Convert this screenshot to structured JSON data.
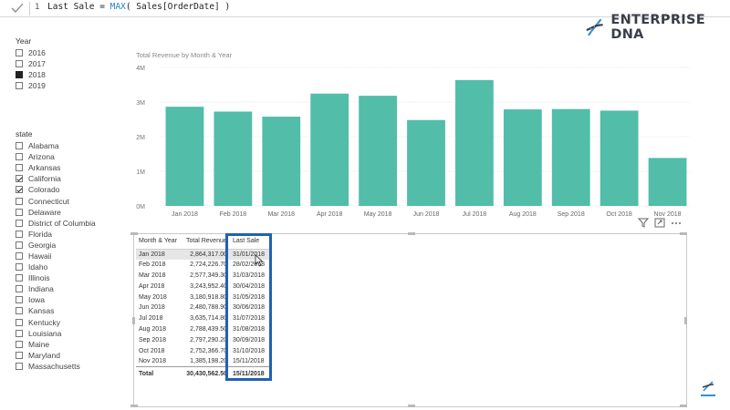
{
  "formula_bar": {
    "line_number": "1",
    "formula_prefix": "Last Sale = ",
    "formula_function": "MAX",
    "formula_suffix": "( Sales[OrderDate] )"
  },
  "logo": {
    "text": "ENTERPRISE DNA",
    "icon": "dna-icon"
  },
  "year_slicer": {
    "title": "Year",
    "items": [
      {
        "label": "2016",
        "state": "unchecked"
      },
      {
        "label": "2017",
        "state": "unchecked"
      },
      {
        "label": "2018",
        "state": "selected"
      },
      {
        "label": "2019",
        "state": "unchecked"
      }
    ]
  },
  "state_slicer": {
    "title": "state",
    "items": [
      {
        "label": "Alabama",
        "state": "unchecked"
      },
      {
        "label": "Arizona",
        "state": "unchecked"
      },
      {
        "label": "Arkansas",
        "state": "unchecked"
      },
      {
        "label": "California",
        "state": "checked"
      },
      {
        "label": "Colorado",
        "state": "checked"
      },
      {
        "label": "Connecticut",
        "state": "unchecked"
      },
      {
        "label": "Delaware",
        "state": "unchecked"
      },
      {
        "label": "District of Columbia",
        "state": "unchecked"
      },
      {
        "label": "Florida",
        "state": "unchecked"
      },
      {
        "label": "Georgia",
        "state": "unchecked"
      },
      {
        "label": "Hawaii",
        "state": "unchecked"
      },
      {
        "label": "Idaho",
        "state": "unchecked"
      },
      {
        "label": "Illinois",
        "state": "unchecked"
      },
      {
        "label": "Indiana",
        "state": "unchecked"
      },
      {
        "label": "Iowa",
        "state": "unchecked"
      },
      {
        "label": "Kansas",
        "state": "unchecked"
      },
      {
        "label": "Kentucky",
        "state": "unchecked"
      },
      {
        "label": "Louisiana",
        "state": "unchecked"
      },
      {
        "label": "Maine",
        "state": "unchecked"
      },
      {
        "label": "Maryland",
        "state": "unchecked"
      },
      {
        "label": "Massachusetts",
        "state": "unchecked"
      }
    ]
  },
  "chart_data": {
    "type": "bar",
    "title": "Total Revenue by Month & Year",
    "categories": [
      "Jan 2018",
      "Feb 2018",
      "Mar 2018",
      "Apr 2018",
      "May 2018",
      "Jun 2018",
      "Jul 2018",
      "Aug 2018",
      "Sep 2018",
      "Oct 2018",
      "Nov 2018"
    ],
    "values": [
      2864317,
      2724226,
      2577349,
      3243952,
      3180918,
      2480788,
      3635714,
      2788439,
      2797290,
      2752366,
      1385198
    ],
    "y_ticks": [
      "0M",
      "1M",
      "2M",
      "3M",
      "4M"
    ],
    "ylim": [
      0,
      4000000
    ],
    "color": "#52bda8",
    "grid": true
  },
  "visual_header_icons": [
    "filter-icon",
    "focus-mode-icon",
    "more-options-icon"
  ],
  "table": {
    "headers": [
      "Month & Year",
      "Total Revenue",
      "Last Sale"
    ],
    "rows": [
      [
        "Jan 2018",
        "2,864,317.00",
        "31/01/2018"
      ],
      [
        "Feb 2018",
        "2,724,226.70",
        "28/02/2018"
      ],
      [
        "Mar 2018",
        "2,577,349.30",
        "31/03/2018"
      ],
      [
        "Apr 2018",
        "3,243,952.40",
        "30/04/2018"
      ],
      [
        "May 2018",
        "3,180,918.80",
        "31/05/2018"
      ],
      [
        "Jun 2018",
        "2,480,788.90",
        "30/06/2018"
      ],
      [
        "Jul 2018",
        "3,635,714.80",
        "31/07/2018"
      ],
      [
        "Aug 2018",
        "2,788,439.50",
        "31/08/2018"
      ],
      [
        "Sep 2018",
        "2,797,290.20",
        "30/09/2018"
      ],
      [
        "Oct 2018",
        "2,752,366.70",
        "31/10/2018"
      ],
      [
        "Nov 2018",
        "1,385,198.20",
        "15/11/2018"
      ]
    ],
    "total": [
      "Total",
      "30,430,562.50",
      "15/11/2018"
    ]
  },
  "colors": {
    "bar": "#52bda8",
    "highlight": "#1f62b5",
    "logo_dark": "#3a3d4a",
    "logo_blue": "#2f8fd8"
  }
}
